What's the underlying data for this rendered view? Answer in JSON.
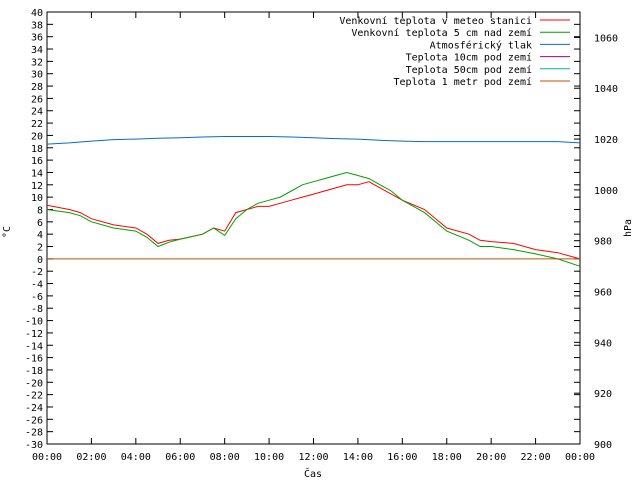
{
  "chart_data": {
    "type": "line",
    "title": "",
    "xlabel": "Čas",
    "ylabel": "°C",
    "y2label": "hPa",
    "xlim": [
      0,
      24
    ],
    "ylim": [
      -30,
      40
    ],
    "y2lim": [
      900,
      1070
    ],
    "grid": false,
    "legend_position": "top-right",
    "x_ticks": [
      "00:00",
      "02:00",
      "04:00",
      "06:00",
      "08:00",
      "10:00",
      "12:00",
      "14:00",
      "16:00",
      "18:00",
      "20:00",
      "22:00",
      "00:00"
    ],
    "y_ticks": [
      40,
      38,
      36,
      34,
      32,
      30,
      28,
      26,
      24,
      22,
      20,
      18,
      16,
      14,
      12,
      10,
      8,
      6,
      4,
      2,
      0,
      -2,
      -4,
      -6,
      -8,
      -10,
      -12,
      -14,
      -16,
      -18,
      -20,
      -22,
      -24,
      -26,
      -28,
      -30
    ],
    "y2_ticks": [
      1060,
      1040,
      1020,
      1000,
      980,
      960,
      940,
      920,
      900
    ],
    "series": [
      {
        "name": "Venkovní teplota v meteo stanici",
        "axis": "left",
        "color": "#ff0000",
        "x": [
          0,
          1,
          1.5,
          2,
          3,
          4,
          4.5,
          5,
          5.5,
          6,
          7,
          7.5,
          8,
          8.5,
          9,
          9.5,
          10,
          10.5,
          11,
          11.5,
          12,
          12.5,
          13,
          13.5,
          14,
          14.5,
          15,
          15.5,
          16,
          17,
          18,
          19,
          19.5,
          20,
          21,
          22,
          23,
          24
        ],
        "y": [
          8.7,
          8,
          7.5,
          6.5,
          5.5,
          5,
          4,
          2.5,
          3,
          3.2,
          4,
          5,
          4.5,
          7.5,
          8,
          8.5,
          8.5,
          9,
          9.5,
          10,
          10.5,
          11,
          11.5,
          12,
          12,
          12.5,
          11.5,
          10.5,
          9.5,
          8,
          5,
          4,
          3,
          2.8,
          2.5,
          1.5,
          1,
          0
        ]
      },
      {
        "name": "Venkovní teplota 5 cm nad zemí",
        "axis": "left",
        "color": "#00a000",
        "x": [
          0,
          1,
          1.5,
          2,
          3,
          4,
          4.5,
          5,
          5.5,
          6,
          7,
          7.5,
          8,
          8.5,
          9,
          9.5,
          10,
          10.5,
          11,
          11.5,
          12,
          12.5,
          13,
          13.5,
          14,
          14.5,
          15,
          15.5,
          16,
          17,
          18,
          19,
          19.5,
          20,
          21,
          22,
          23,
          24
        ],
        "y": [
          8,
          7.5,
          7,
          6,
          5,
          4.5,
          3.5,
          2,
          2.7,
          3.2,
          4,
          5,
          3.8,
          6.5,
          8,
          9,
          9.5,
          10,
          11,
          12,
          12.5,
          13,
          13.5,
          14,
          13.5,
          13,
          12,
          11,
          9.5,
          7.5,
          4.5,
          3,
          2,
          2,
          1.5,
          0.8,
          0,
          -1.2
        ]
      },
      {
        "name": "Atmosférický tlak",
        "axis": "right",
        "color": "#0070c0",
        "x": [
          0,
          1,
          2,
          3,
          4,
          5,
          6,
          7,
          8,
          9,
          10,
          11,
          12,
          13,
          14,
          15,
          16,
          17,
          18,
          19,
          20,
          21,
          22,
          23,
          24
        ],
        "y": [
          1018,
          1018.5,
          1019.2,
          1019.8,
          1020,
          1020.3,
          1020.5,
          1020.8,
          1021,
          1021,
          1021,
          1020.8,
          1020.5,
          1020.2,
          1020,
          1019.5,
          1019.2,
          1019,
          1019,
          1019,
          1019,
          1019,
          1019,
          1019,
          1018.5
        ]
      },
      {
        "name": "Teplota 10cm pod zemí",
        "axis": "left",
        "color": "#a000a0",
        "x": [],
        "y": []
      },
      {
        "name": "Teplota 50cm pod zemí",
        "axis": "left",
        "color": "#00b0b0",
        "x": [],
        "y": []
      },
      {
        "name": "Teplota 1 metr pod zemí",
        "axis": "left",
        "color": "#c05000",
        "x": [
          0,
          24
        ],
        "y": [
          0,
          0
        ]
      }
    ]
  }
}
